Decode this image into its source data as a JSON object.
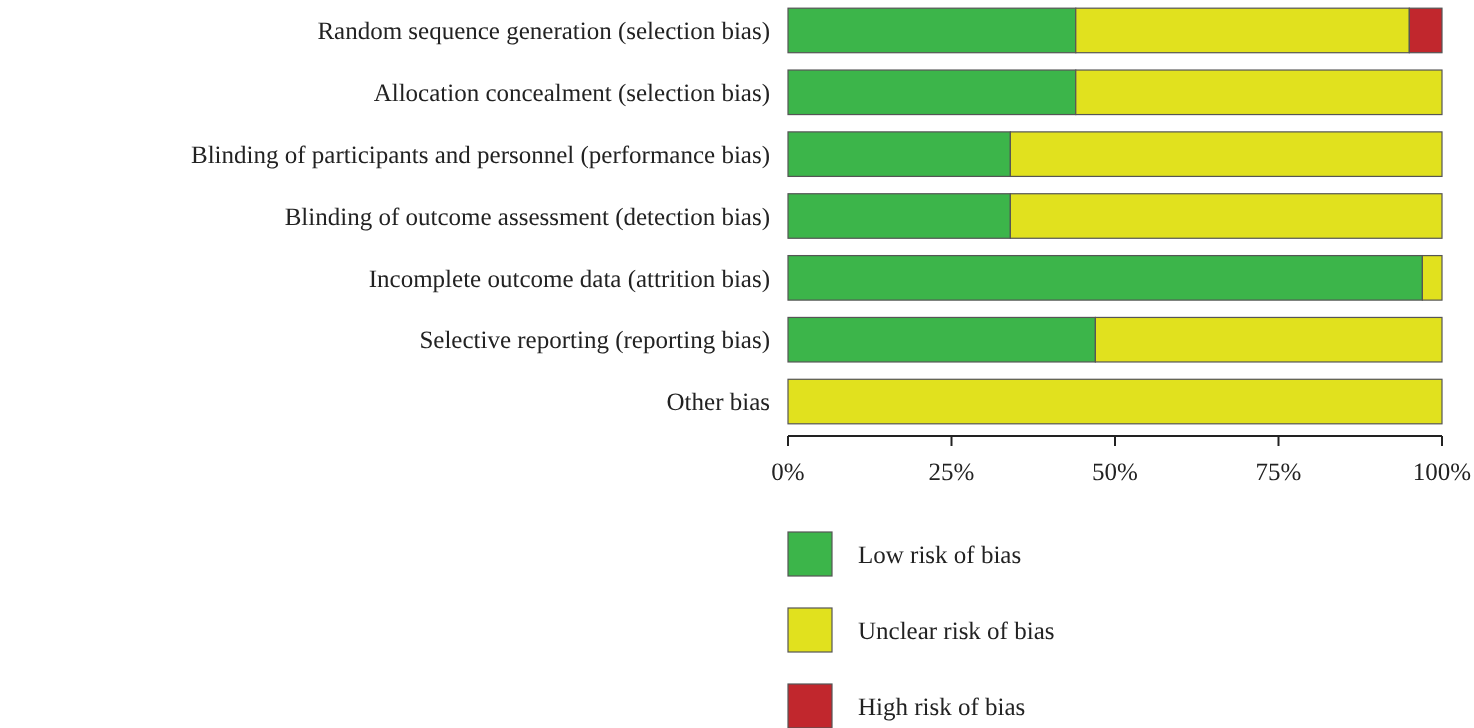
{
  "chart_data": {
    "type": "bar",
    "orientation": "horizontal",
    "stacked": true,
    "categories": [
      "Random sequence generation (selection bias)",
      "Allocation concealment (selection bias)",
      "Blinding of participants and personnel (performance bias)",
      "Blinding of outcome assessment (detection bias)",
      "Incomplete outcome data (attrition bias)",
      "Selective reporting (reporting bias)",
      "Other bias"
    ],
    "series": [
      {
        "name": "Low risk of bias",
        "color": "#3cb54a",
        "values": [
          44,
          44,
          34,
          34,
          97,
          47,
          0
        ]
      },
      {
        "name": "Unclear risk of bias",
        "color": "#e1e11e",
        "values": [
          51,
          56,
          66,
          66,
          3,
          53,
          100
        ]
      },
      {
        "name": "High risk of bias",
        "color": "#c1272d",
        "values": [
          5,
          0,
          0,
          0,
          0,
          0,
          0
        ]
      }
    ],
    "xlim": [
      0,
      100
    ],
    "xticks": [
      {
        "value": 0,
        "label": "0%"
      },
      {
        "value": 25,
        "label": "25%"
      },
      {
        "value": 50,
        "label": "50%"
      },
      {
        "value": 75,
        "label": "75%"
      },
      {
        "value": 100,
        "label": "100%"
      }
    ],
    "grid": false,
    "legend": "bottom"
  }
}
